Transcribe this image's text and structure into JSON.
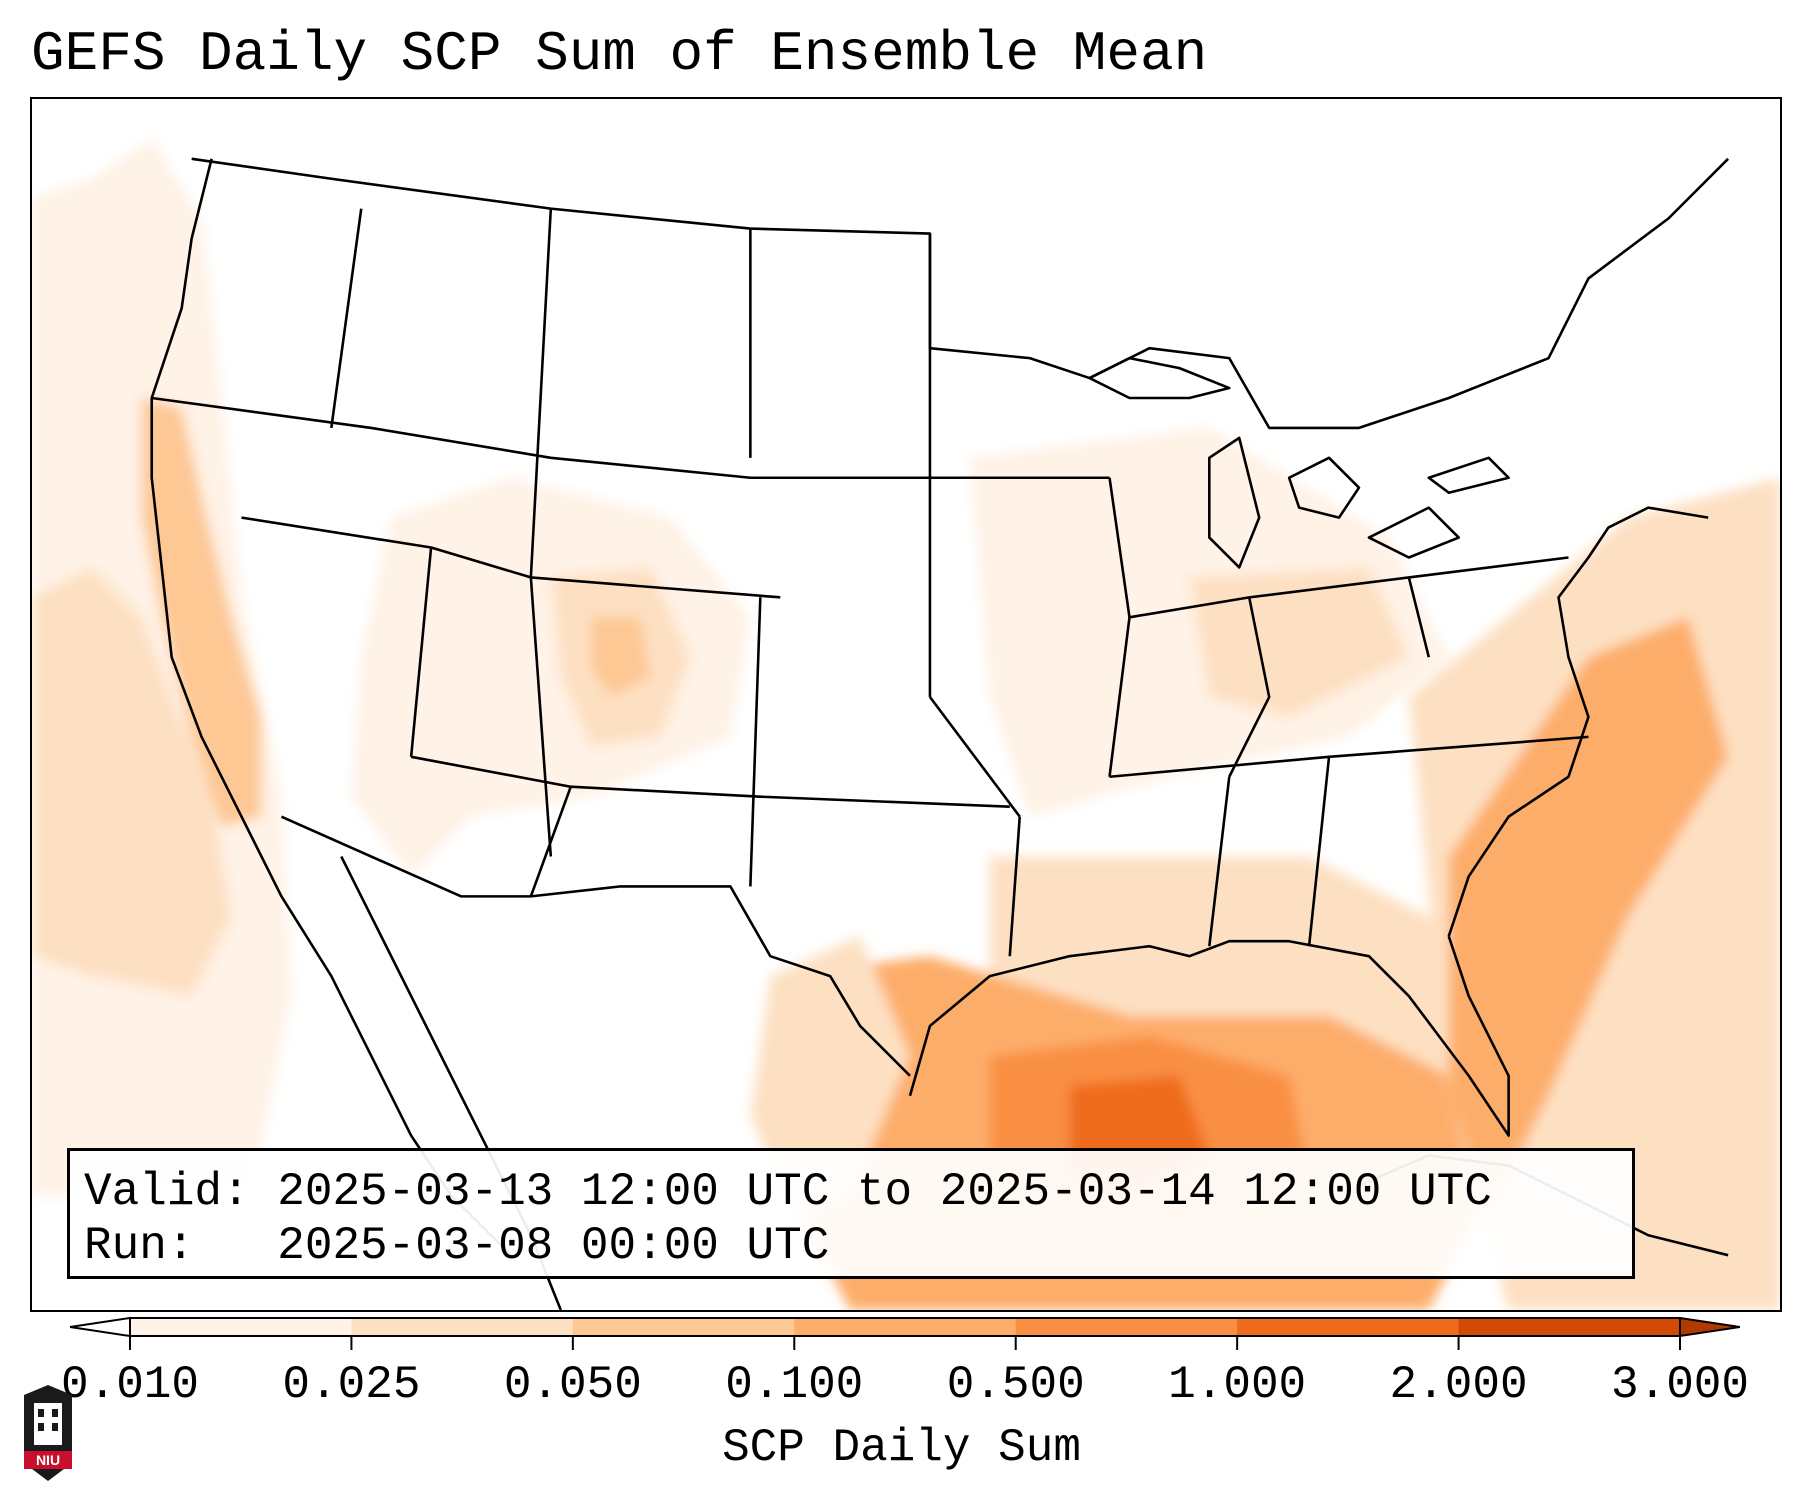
{
  "title": "GEFS Daily SCP Sum of Ensemble Mean",
  "info": {
    "valid_line": "Valid: 2025-03-13 12:00 UTC to 2025-03-14 12:00 UTC",
    "run_line": "Run:   2025-03-08 00:00 UTC"
  },
  "colorbar": {
    "label": "SCP Daily Sum",
    "ticks": [
      "0.010",
      "0.025",
      "0.050",
      "0.100",
      "0.500",
      "1.000",
      "2.000",
      "3.000"
    ],
    "colors": [
      "#fff2e6",
      "#fde0c2",
      "#fdc894",
      "#fdad6a",
      "#f98f43",
      "#ef6c1c",
      "#d24a05"
    ],
    "extend": "both"
  },
  "logo": {
    "text": "NIU",
    "color": "#c8102e"
  },
  "map": {
    "shading_colors": {
      "lightest": "#fff2e6",
      "light": "#fde0c2",
      "medium": "#fdc894",
      "strong": "#fdad6a",
      "stronger": "#f98f43",
      "max": "#ef6c1c"
    }
  }
}
